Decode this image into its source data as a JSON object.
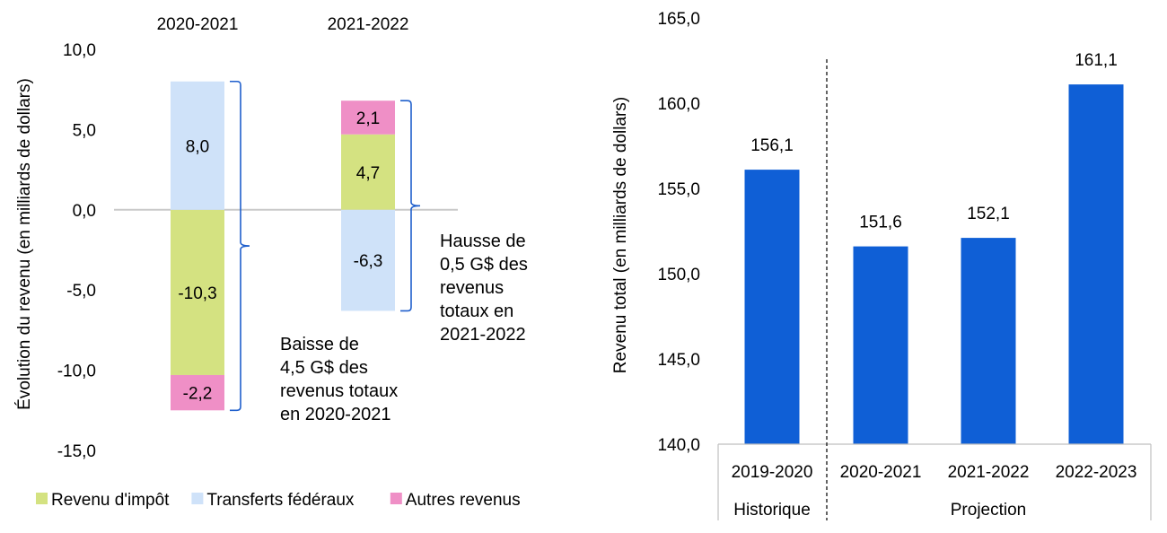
{
  "chart_data": [
    {
      "type": "bar",
      "stacked": true,
      "ylabel": "Évolution du revenu (en milliards de dollars)",
      "ylim": [
        -15,
        10
      ],
      "yticks": [
        "10,0",
        "5,0",
        "0,0",
        "-5,0",
        "-10,0",
        "-15,0"
      ],
      "categories": [
        "2020-2021",
        "2021-2022"
      ],
      "series": [
        {
          "name": "Revenu d'impôt",
          "color": "#d4e281",
          "values": [
            -10.3,
            4.7
          ],
          "labels": [
            "-10,3",
            "4,7"
          ]
        },
        {
          "name": "Transferts fédéraux",
          "color": "#cfe2f9",
          "values": [
            8.0,
            -6.3
          ],
          "labels": [
            "8,0",
            "-6,3"
          ]
        },
        {
          "name": "Autres revenus",
          "color": "#ef8fc6",
          "values": [
            -2.2,
            2.1
          ],
          "labels": [
            "-2,2",
            "2,1"
          ]
        }
      ],
      "annotations": [
        {
          "category": "2020-2021",
          "lines": [
            "Baisse de",
            "4,5 G$ des",
            "revenus totaux",
            "en 2020-2021"
          ]
        },
        {
          "category": "2021-2022",
          "lines": [
            "Hausse de",
            "0,5 G$ des",
            "revenus",
            "totaux en",
            "2021-2022"
          ]
        }
      ],
      "legend": "bottom",
      "grid": false
    },
    {
      "type": "bar",
      "ylabel": "Revenu total (en milliards de dollars)",
      "ylim": [
        140,
        165
      ],
      "yticks": [
        "165,0",
        "160,0",
        "155,0",
        "150,0",
        "145,0",
        "140,0"
      ],
      "categories": [
        "2019-2020",
        "2020-2021",
        "2021-2022",
        "2022-2023"
      ],
      "values": [
        156.1,
        151.6,
        152.1,
        161.1
      ],
      "value_labels": [
        "156,1",
        "151,6",
        "152,1",
        "161,1"
      ],
      "bar_color": "#0f5fd6",
      "groups": [
        {
          "label": "Historique",
          "categories": [
            "2019-2020"
          ]
        },
        {
          "label": "Projection",
          "categories": [
            "2020-2021",
            "2021-2022",
            "2022-2023"
          ]
        }
      ],
      "grid": false
    }
  ]
}
